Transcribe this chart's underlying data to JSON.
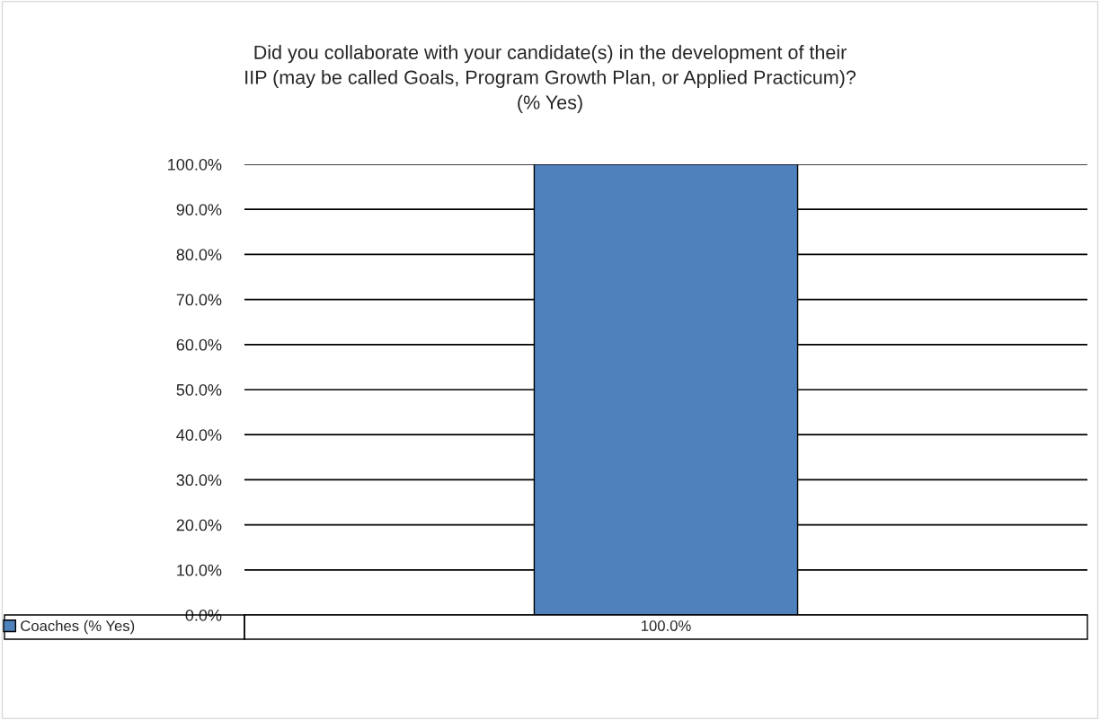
{
  "chart_data": {
    "type": "bar",
    "title": "Did you collaborate with your candidate(s) in the development of their\nIIP (may be called Goals, Program Growth Plan, or Applied Practicum)?\n(% Yes)",
    "categories": [
      null
    ],
    "series": [
      {
        "name": "Coaches (% Yes)",
        "color": "#4f81bd",
        "values": [
          100
        ],
        "value_labels": [
          "100.0%"
        ]
      }
    ],
    "ylim": [
      0,
      100
    ],
    "yticks": [
      {
        "value": 0,
        "label": "0.0%"
      },
      {
        "value": 10,
        "label": "10.0%"
      },
      {
        "value": 20,
        "label": "20.0%"
      },
      {
        "value": 30,
        "label": "30.0%"
      },
      {
        "value": 40,
        "label": "40.0%"
      },
      {
        "value": 50,
        "label": "50.0%"
      },
      {
        "value": 60,
        "label": "60.0%"
      },
      {
        "value": 70,
        "label": "70.0%"
      },
      {
        "value": 80,
        "label": "80.0%"
      },
      {
        "value": 90,
        "label": "90.0%"
      },
      {
        "value": 100,
        "label": "100.0%"
      }
    ],
    "grid": "y",
    "legend": "bottom"
  }
}
